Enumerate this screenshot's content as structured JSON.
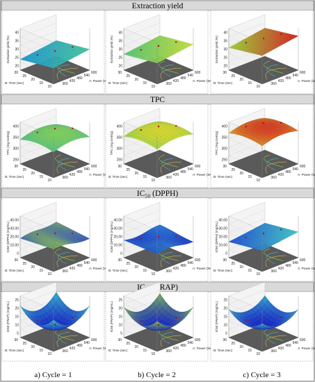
{
  "panel_header_bg": "#d9d9d9",
  "floor_color": "#5a5a5a",
  "captions": [
    "a) Cycle = 1",
    "b) Cycle = 2",
    "c) Cycle = 3"
  ],
  "chart_data": [
    {
      "type": "surface",
      "title": "Extraction yield",
      "x_label": "A: Power (W)",
      "y_label": "B: Time (sec)",
      "z_label": "Extraction yield (%)",
      "x_range": [
        300,
        600
      ],
      "y_range": [
        10,
        30
      ],
      "x_ticks": [
        "300",
        "360",
        "420",
        "480",
        "540",
        "600"
      ],
      "y_ticks": [
        "10",
        "15",
        "20",
        "25",
        "30"
      ],
      "z_ticks": [
        [
          "20",
          "25",
          "30",
          "35",
          "40"
        ],
        [
          "20",
          "25",
          "30",
          "35",
          "40"
        ],
        [
          "20",
          "25",
          "30",
          "35",
          "40"
        ]
      ],
      "panels": [
        {
          "cycle": 1,
          "surface": {
            "type": "plane",
            "z_min": 24,
            "z_max": 30
          },
          "colors": [
            "#1e9bd7",
            "#46c8a0"
          ]
        },
        {
          "cycle": 2,
          "surface": {
            "type": "plane",
            "z_min": 27,
            "z_max": 33
          },
          "colors": [
            "#56c877",
            "#c8e23a"
          ]
        },
        {
          "cycle": 3,
          "surface": {
            "type": "plane",
            "z_min": 31,
            "z_max": 38
          },
          "colors": [
            "#9bd83a",
            "#d81e1e"
          ]
        }
      ]
    },
    {
      "type": "surface",
      "title": "TPC",
      "x_label": "A: Power (W)",
      "y_label": "B: Time (sec)",
      "z_label": "TPC (mg GAE/g)",
      "x_range": [
        300,
        600
      ],
      "y_range": [
        10,
        30
      ],
      "x_ticks": [
        "300",
        "360",
        "420",
        "480",
        "540",
        "600"
      ],
      "y_ticks": [
        "10",
        "15",
        "20",
        "25",
        "30"
      ],
      "z_ticks": [
        [
          "250",
          "300",
          "350",
          "400"
        ],
        [
          "250",
          "300",
          "350",
          "400"
        ],
        [
          "250",
          "300",
          "350",
          "400"
        ]
      ],
      "panels": [
        {
          "cycle": 1,
          "surface": {
            "type": "dome",
            "z_min": 330,
            "z_max": 375
          },
          "colors": [
            "#3fb6a0",
            "#7cd15a"
          ]
        },
        {
          "cycle": 2,
          "surface": {
            "type": "dome",
            "z_min": 345,
            "z_max": 385
          },
          "colors": [
            "#7cd15a",
            "#d9d92a"
          ]
        },
        {
          "cycle": 3,
          "surface": {
            "type": "dome",
            "z_min": 360,
            "z_max": 400
          },
          "colors": [
            "#d9c02a",
            "#d83a1e"
          ]
        }
      ]
    },
    {
      "type": "surface",
      "title": "IC₅₀ (DPPH)",
      "x_label": "A: Power (W)",
      "y_label": "B: Time (sec)",
      "z_label": "IC50 (DPPH) (mg/mL)",
      "x_range": [
        300,
        600
      ],
      "y_range": [
        10,
        30
      ],
      "x_ticks": [
        "300",
        "360",
        "420",
        "480",
        "540",
        "600"
      ],
      "y_ticks": [
        "10",
        "15",
        "20",
        "25",
        "30"
      ],
      "z_ticks": [
        [
          "0",
          "10.00",
          "20.00",
          "30.00",
          "40.00"
        ],
        [
          "0",
          "10.00",
          "20.00",
          "30.00",
          "40.00"
        ],
        [
          "0",
          "10.00",
          "20.00",
          "30.00",
          "40.00"
        ]
      ],
      "panels": [
        {
          "cycle": 1,
          "surface": {
            "type": "saddle",
            "z_min": 16,
            "z_max": 24
          },
          "colors": [
            "#1e3cd7",
            "#9bd83a"
          ]
        },
        {
          "cycle": 2,
          "surface": {
            "type": "wave",
            "z_min": 12,
            "z_max": 20
          },
          "colors": [
            "#1428c8",
            "#2f8fd7"
          ]
        },
        {
          "cycle": 3,
          "surface": {
            "type": "plane",
            "z_min": 14,
            "z_max": 26
          },
          "colors": [
            "#1e50d7",
            "#3fc8c8"
          ]
        }
      ]
    },
    {
      "type": "surface",
      "title": "IC₅₀ (FRAP)",
      "x_label": "A: Power (W)",
      "y_label": "B: Time (sec)",
      "z_label": "IC50 (FRAP) (mg/mL)",
      "x_range": [
        300,
        600
      ],
      "y_range": [
        10,
        30
      ],
      "x_ticks": [
        "300",
        "360",
        "420",
        "480",
        "540",
        "600"
      ],
      "y_ticks": [
        "10",
        "15",
        "20",
        "25",
        "30"
      ],
      "z_ticks": [
        [
          "5",
          "10",
          "15",
          "20",
          "25"
        ],
        [
          "5",
          "10",
          "15",
          "20",
          "25"
        ],
        [
          "5",
          "10",
          "15",
          "20",
          "25"
        ]
      ],
      "panels": [
        {
          "cycle": 1,
          "surface": {
            "type": "bowl",
            "z_min": 8,
            "z_max": 25
          },
          "colors": [
            "#1420c8",
            "#3fd8c8"
          ]
        },
        {
          "cycle": 2,
          "surface": {
            "type": "bowl",
            "z_min": 8,
            "z_max": 24
          },
          "colors": [
            "#1420c8",
            "#8fd83a"
          ]
        },
        {
          "cycle": 3,
          "surface": {
            "type": "bowl",
            "z_min": 9,
            "z_max": 22
          },
          "colors": [
            "#1420c8",
            "#3fc8c8"
          ]
        }
      ]
    }
  ]
}
